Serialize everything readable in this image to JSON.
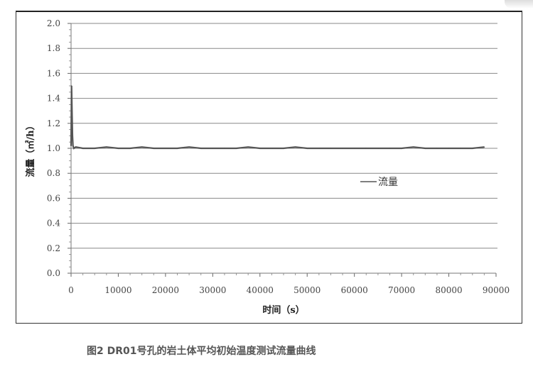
{
  "chart_data": {
    "type": "line",
    "title": "",
    "xlabel": "时间（s）",
    "ylabel": "流量（㎡/h）",
    "xlim": [
      0,
      90000
    ],
    "ylim": [
      0,
      2.0
    ],
    "xticks": [
      "0",
      "10000",
      "20000",
      "30000",
      "40000",
      "50000",
      "60000",
      "70000",
      "80000",
      "90000"
    ],
    "yticks": [
      "0.0",
      "0.2",
      "0.4",
      "0.6",
      "0.8",
      "1.0",
      "1.2",
      "1.4",
      "1.6",
      "1.8",
      "2.0"
    ],
    "grid": "horizontal",
    "legend": "right",
    "series": [
      {
        "name": "流量",
        "color": "#555555",
        "x": [
          0,
          100,
          200,
          300,
          400,
          600,
          1000,
          2500,
          5000,
          7500,
          10000,
          12500,
          15000,
          17500,
          20000,
          22500,
          25000,
          27500,
          30000,
          32500,
          35000,
          37500,
          40000,
          42500,
          45000,
          47500,
          50000,
          52500,
          55000,
          57500,
          60000,
          62500,
          65000,
          67500,
          70000,
          72500,
          75000,
          77500,
          80000,
          82500,
          85000,
          87500
        ],
        "y": [
          1.02,
          1.5,
          1.3,
          1.1,
          1.02,
          1.0,
          1.01,
          1.0,
          1.0,
          1.01,
          1.0,
          1.0,
          1.01,
          1.0,
          1.0,
          1.0,
          1.01,
          1.0,
          1.0,
          1.0,
          1.0,
          1.01,
          1.0,
          1.0,
          1.0,
          1.01,
          1.0,
          1.0,
          1.0,
          1.0,
          1.0,
          1.0,
          1.0,
          1.0,
          1.0,
          1.01,
          1.0,
          1.0,
          1.0,
          1.0,
          1.0,
          1.01
        ]
      }
    ]
  },
  "caption": "图2 DR01号孔的岩土体平均初始温度测试流量曲线"
}
